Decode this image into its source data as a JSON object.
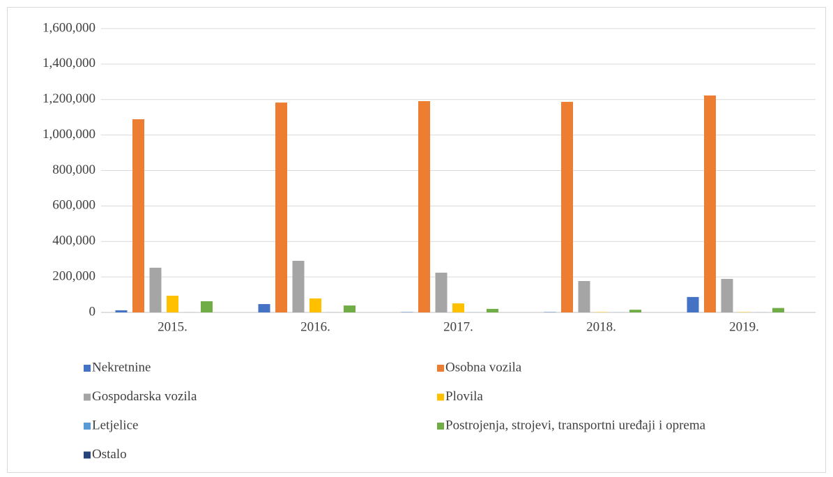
{
  "chart_data": {
    "type": "bar",
    "categories": [
      "2015.",
      "2016.",
      "2017.",
      "2018.",
      "2019."
    ],
    "series": [
      {
        "name": "Nekretnine",
        "color": "#4472c4",
        "values": [
          12000,
          47000,
          2000,
          2000,
          87000
        ]
      },
      {
        "name": "Osobna vozila",
        "color": "#ed7d31",
        "values": [
          1089000,
          1183000,
          1191000,
          1187000,
          1223000
        ]
      },
      {
        "name": "Gospodarska vozila",
        "color": "#a5a5a5",
        "values": [
          252000,
          291000,
          224000,
          177000,
          189000
        ]
      },
      {
        "name": "Plovila",
        "color": "#ffc000",
        "values": [
          94000,
          79000,
          51000,
          2000,
          2000
        ]
      },
      {
        "name": "Letjelice",
        "color": "#5b9bd5",
        "values": [
          500,
          500,
          500,
          500,
          500
        ]
      },
      {
        "name": "Postrojenja, strojevi, transportni uređaji i oprema",
        "color": "#70ad47",
        "values": [
          63000,
          39000,
          20000,
          15000,
          25000
        ]
      },
      {
        "name": "Ostalo",
        "color": "#264478",
        "values": [
          0,
          0,
          0,
          0,
          0
        ]
      }
    ],
    "ylim": [
      0,
      1600000
    ],
    "yticks": [
      0,
      {
        "value": 200000,
        "label": "200,000"
      },
      {
        "value": 400000,
        "label": "400,000"
      },
      {
        "value": 600000,
        "label": "600,000"
      },
      {
        "value": 800000,
        "label": "800,000"
      },
      {
        "value": 1000000,
        "label": "1,000,000"
      },
      {
        "value": 1200000,
        "label": "1,200,000"
      },
      {
        "value": 1400000,
        "label": "1,400,000"
      },
      {
        "value": 1600000,
        "label": "1,600,000"
      }
    ],
    "grid": true,
    "legend": "bottom"
  }
}
